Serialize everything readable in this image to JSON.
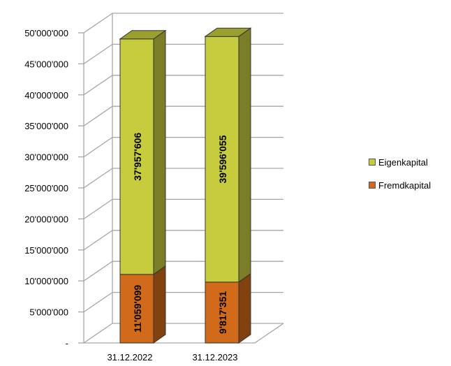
{
  "chart_data": {
    "type": "bar",
    "stacked": true,
    "three_d": true,
    "categories": [
      "31.12.2022",
      "31.12.2023"
    ],
    "series": [
      {
        "name": "Fremdkapital",
        "values": [
          11059099,
          9817351
        ],
        "labels": [
          "11'059'099",
          "9'817'351"
        ],
        "color": "#d16a1a"
      },
      {
        "name": "Eigenkapital",
        "values": [
          37957606,
          39596055
        ],
        "labels": [
          "37'957'606",
          "39'596'055"
        ],
        "color": "#c6cc3d"
      }
    ],
    "ylim": [
      0,
      50000000
    ],
    "yticks": [
      {
        "value": 0,
        "label": "-"
      },
      {
        "value": 5000000,
        "label": "5'000'000"
      },
      {
        "value": 10000000,
        "label": "10'000'000"
      },
      {
        "value": 15000000,
        "label": "15'000'000"
      },
      {
        "value": 20000000,
        "label": "20'000'000"
      },
      {
        "value": 25000000,
        "label": "25'000'000"
      },
      {
        "value": 30000000,
        "label": "30'000'000"
      },
      {
        "value": 35000000,
        "label": "35'000'000"
      },
      {
        "value": 40000000,
        "label": "40'000'000"
      },
      {
        "value": 45000000,
        "label": "45'000'000"
      },
      {
        "value": 50000000,
        "label": "50'000'000"
      }
    ],
    "grid": true,
    "legend_position": "right",
    "legend": [
      "Eigenkapital",
      "Fremdkapital"
    ]
  }
}
